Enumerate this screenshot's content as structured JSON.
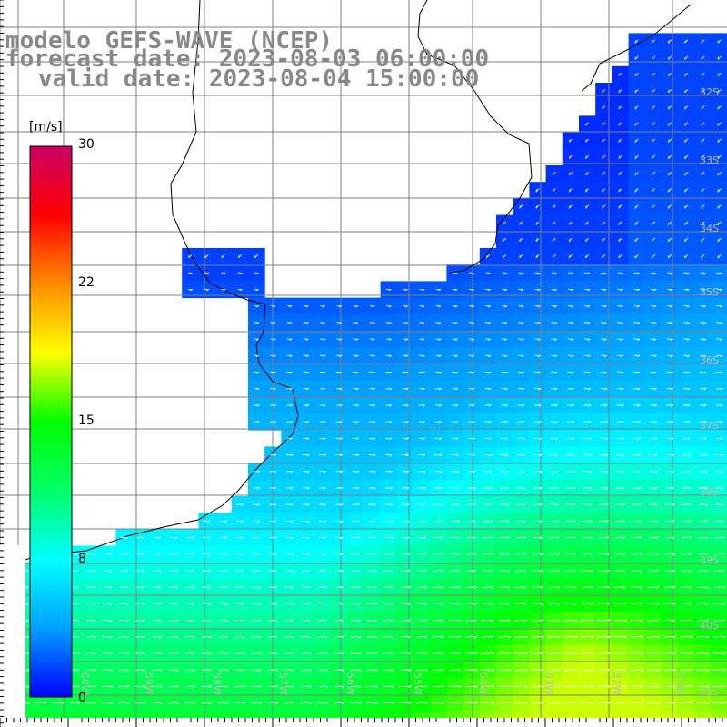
{
  "title": {
    "line1": "modelo GEFS-WAVE (NCEP)",
    "line2": "forecast date: 2023-08-03 06:00:00",
    "line3": "valid date: 2023-08-04 15:00:00"
  },
  "colorbar": {
    "unit": "[m/s]",
    "ticks": [
      "30",
      "22",
      "15",
      "8",
      "0"
    ],
    "min": 0,
    "max": 30,
    "colors": [
      "#0000ff",
      "#00a0ff",
      "#00ffff",
      "#00ff66",
      "#00ff00",
      "#ffff00",
      "#ff8c00",
      "#ff0000",
      "#cc0066"
    ]
  },
  "map": {
    "lat_labels": [
      "32S",
      "33S",
      "34S",
      "35S",
      "36S",
      "37S",
      "38S",
      "39S",
      "40S",
      "41S"
    ],
    "lon_labels": [
      "61W",
      "60W",
      "59W",
      "58W",
      "57W",
      "56W",
      "55W",
      "54W",
      "53W",
      "52W",
      "51W"
    ],
    "land_color": "#ffffff",
    "coast_color": "#000000",
    "grid_color": "#808080"
  }
}
